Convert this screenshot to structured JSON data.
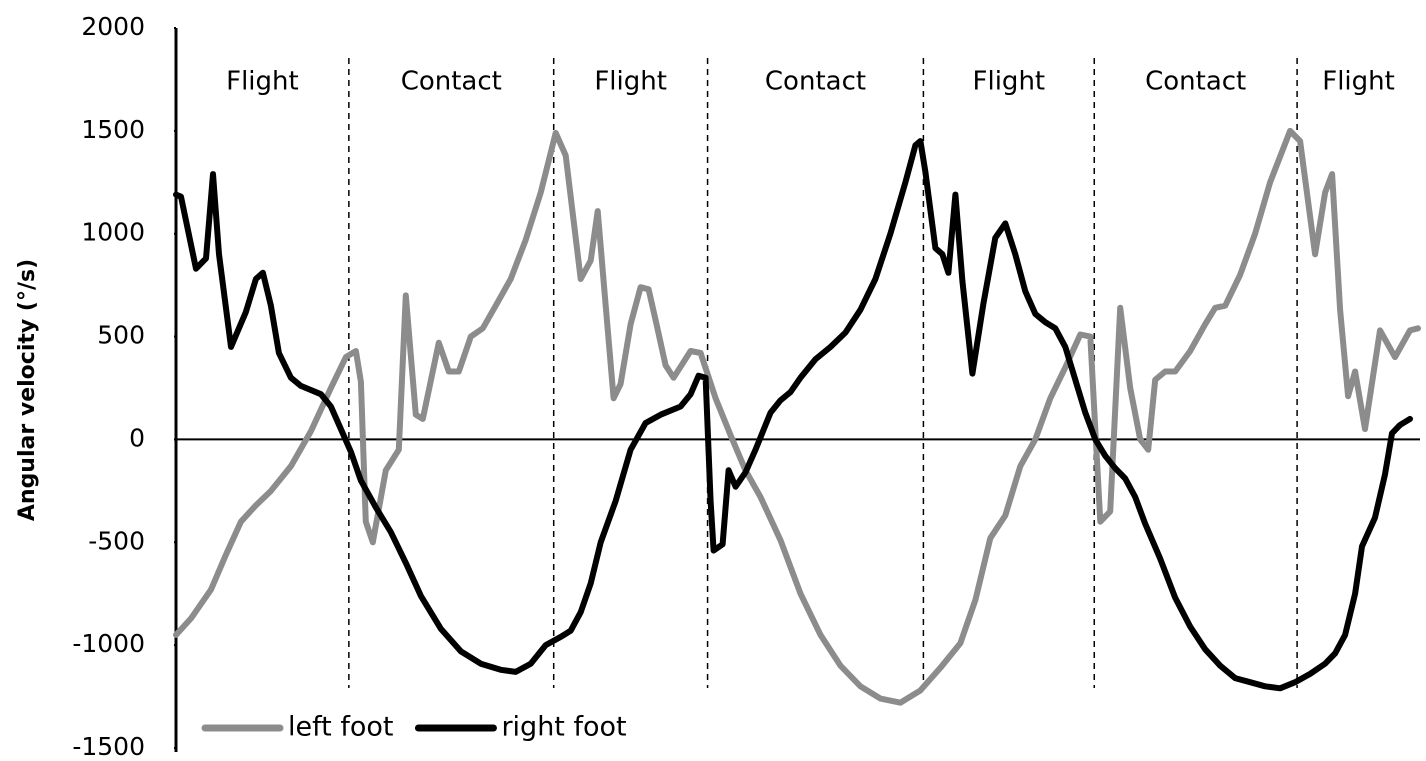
{
  "chart_data": {
    "type": "line",
    "y_label": "Angular velocity (°/s)",
    "xlim": [
      0,
      124.5
    ],
    "ylim": [
      -1500,
      2000
    ],
    "yticks": [
      -1500,
      -1000,
      -500,
      0,
      500,
      1000,
      1500,
      2000
    ],
    "legend": "bottom-left",
    "phase_labels": [
      "Flight",
      "Contact",
      "Flight",
      "Contact",
      "Flight",
      "Contact",
      "Flight"
    ],
    "phase_boundaries": [
      17.3,
      37.8,
      53.2,
      74.8,
      91.9,
      112.2
    ],
    "series": [
      {
        "name": "left foot",
        "color": "#8c8c8c",
        "x": [
          0,
          1.5,
          3.5,
          5,
          6.5,
          8,
          9.5,
          11.5,
          13.5,
          15.5,
          17,
          18,
          18.5,
          19,
          19.7,
          21,
          22.3,
          23,
          24,
          24.7,
          26.3,
          27.3,
          28.3,
          29.5,
          30.7,
          32,
          33.5,
          35,
          36.5,
          38,
          39,
          40.5,
          41.5,
          42.2,
          43,
          43.8,
          44.5,
          45.5,
          46.5,
          47.3,
          48,
          49,
          49.8,
          51.5,
          52.5,
          54,
          55.5,
          57,
          58.5,
          60.5,
          62.5,
          64.5,
          66.5,
          68.5,
          70.5,
          72.5,
          74.5,
          76.5,
          78.5,
          80,
          81.5,
          83,
          84.5,
          86,
          87.5,
          89,
          90.5,
          91.5,
          92.5,
          93.5,
          94.5,
          95.5,
          96.5,
          97.3,
          98,
          99,
          100,
          101.5,
          103,
          104,
          105,
          106.5,
          108,
          109.5,
          111.5,
          112.5,
          114,
          115,
          115.7,
          116.5,
          117.3,
          118,
          119,
          120.5,
          122,
          123.5,
          124.3
        ],
        "values": [
          -950,
          -870,
          -730,
          -560,
          -400,
          -320,
          -250,
          -130,
          40,
          250,
          400,
          430,
          280,
          -400,
          -500,
          -150,
          -50,
          700,
          120,
          100,
          470,
          330,
          330,
          500,
          540,
          650,
          780,
          970,
          1200,
          1490,
          1380,
          780,
          870,
          1110,
          650,
          200,
          270,
          560,
          740,
          730,
          580,
          360,
          300,
          430,
          420,
          200,
          20,
          -150,
          -280,
          -490,
          -750,
          -950,
          -1100,
          -1200,
          -1260,
          -1280,
          -1220,
          -1110,
          -990,
          -780,
          -480,
          -370,
          -130,
          0,
          200,
          350,
          510,
          500,
          -400,
          -350,
          640,
          250,
          0,
          -50,
          290,
          330,
          330,
          430,
          560,
          640,
          650,
          800,
          1000,
          1250,
          1500,
          1450,
          900,
          1200,
          1290,
          630,
          210,
          330,
          50,
          530,
          400,
          530,
          540
        ]
      },
      {
        "name": "right foot",
        "color": "#000000",
        "x": [
          0,
          0.5,
          2,
          3,
          3.7,
          4.3,
          5.5,
          7,
          8,
          8.7,
          9.5,
          10.3,
          11.5,
          12.5,
          14.5,
          15.5,
          16.5,
          17.5,
          18.5,
          20,
          21.5,
          23,
          24.5,
          26.5,
          28.5,
          30.5,
          32.5,
          34,
          35.5,
          37,
          38.5,
          39.5,
          40.5,
          41.5,
          42.5,
          44,
          45.5,
          47,
          48.5,
          50.5,
          51.5,
          52.3,
          53,
          53.5,
          53.8,
          54.7,
          55.3,
          56,
          57,
          58,
          59.5,
          60.5,
          61.5,
          62.5,
          64,
          65.5,
          67,
          68.5,
          70,
          71.5,
          73,
          74,
          74.5,
          75,
          76,
          76.7,
          77.3,
          78,
          78.7,
          79.7,
          80.8,
          82,
          83,
          84,
          85,
          86,
          87,
          88,
          89,
          90,
          91,
          92,
          93,
          94,
          95,
          96,
          97,
          98.5,
          100,
          101.5,
          103,
          104.5,
          106,
          107.5,
          109,
          110.5,
          112,
          113.5,
          115,
          116,
          117,
          118,
          118.7,
          120,
          121,
          121.7,
          122.5,
          123.5
        ],
        "values": [
          1190,
          1180,
          830,
          880,
          1290,
          900,
          450,
          620,
          780,
          810,
          650,
          420,
          300,
          260,
          220,
          160,
          50,
          -60,
          -200,
          -330,
          -450,
          -600,
          -760,
          -920,
          -1030,
          -1090,
          -1120,
          -1130,
          -1090,
          -1000,
          -960,
          -930,
          -840,
          -700,
          -500,
          -300,
          -50,
          80,
          120,
          160,
          220,
          310,
          300,
          -300,
          -540,
          -510,
          -150,
          -230,
          -160,
          -50,
          130,
          190,
          230,
          300,
          390,
          450,
          520,
          630,
          780,
          1000,
          1250,
          1430,
          1450,
          1300,
          930,
          900,
          810,
          1190,
          770,
          320,
          660,
          980,
          1050,
          900,
          720,
          610,
          570,
          540,
          450,
          290,
          130,
          0,
          -80,
          -140,
          -190,
          -280,
          -410,
          -580,
          -770,
          -910,
          -1020,
          -1100,
          -1160,
          -1180,
          -1200,
          -1210,
          -1180,
          -1140,
          -1090,
          -1040,
          -950,
          -750,
          -520,
          -380,
          -170,
          30,
          70,
          100
        ]
      }
    ]
  }
}
